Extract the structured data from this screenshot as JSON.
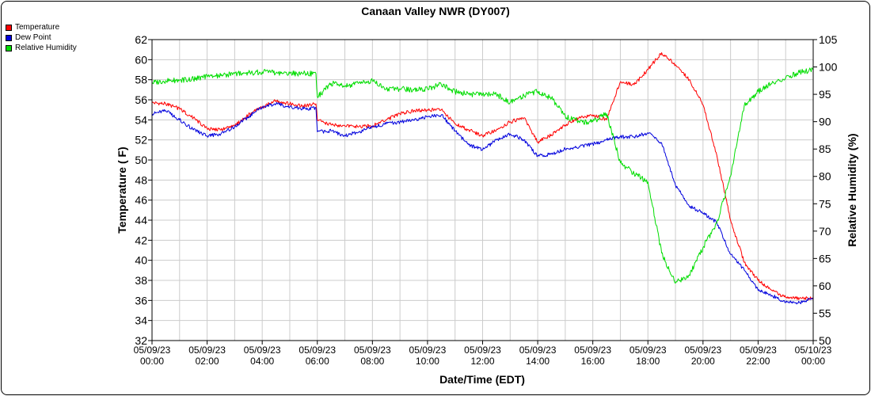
{
  "chart_data": {
    "type": "line",
    "title": "Canaan Valley NWR (DY007)",
    "xlabel": "Date/Time (EDT)",
    "ylabel": "Temperature ( F)",
    "y2label": "Relative Humidity (%)",
    "xlim": [
      0,
      24
    ],
    "ylim": [
      32,
      62
    ],
    "y2lim": [
      50,
      105
    ],
    "x_ticks": [
      0,
      2,
      4,
      6,
      8,
      10,
      12,
      14,
      16,
      18,
      20,
      22,
      24
    ],
    "x_tick_labels": [
      [
        "05/09/23",
        "00:00"
      ],
      [
        "05/09/23",
        "02:00"
      ],
      [
        "05/09/23",
        "04:00"
      ],
      [
        "05/09/23",
        "06:00"
      ],
      [
        "05/09/23",
        "08:00"
      ],
      [
        "05/09/23",
        "10:00"
      ],
      [
        "05/09/23",
        "12:00"
      ],
      [
        "05/09/23",
        "14:00"
      ],
      [
        "05/09/23",
        "16:00"
      ],
      [
        "05/09/23",
        "18:00"
      ],
      [
        "05/09/23",
        "20:00"
      ],
      [
        "05/09/23",
        "22:00"
      ],
      [
        "05/10/23",
        "00:00"
      ]
    ],
    "y_ticks": [
      32,
      34,
      36,
      38,
      40,
      42,
      44,
      46,
      48,
      50,
      52,
      54,
      56,
      58,
      60,
      62
    ],
    "y2_ticks": [
      50,
      55,
      60,
      65,
      70,
      75,
      80,
      85,
      90,
      95,
      100,
      105
    ],
    "grid": true,
    "legend_position": "top-left",
    "series": [
      {
        "name": "Temperature",
        "color": "#ff0000",
        "axis": "left",
        "x": [
          0,
          0.5,
          1,
          1.5,
          2,
          2.5,
          3,
          3.5,
          4,
          4.5,
          5,
          5.5,
          5.95,
          6.0,
          6.5,
          7,
          7.5,
          8,
          8.5,
          9,
          9.5,
          10,
          10.5,
          11,
          11.5,
          12,
          12.5,
          13,
          13.5,
          14,
          14.5,
          15,
          15.5,
          16,
          16.5,
          17,
          17.5,
          18,
          18.5,
          19,
          19.5,
          20,
          20.5,
          21,
          21.5,
          22,
          22.5,
          23,
          23.5,
          24
        ],
        "y": [
          55.7,
          55.6,
          55.1,
          54.2,
          53.1,
          53.0,
          53.4,
          54.5,
          55.3,
          55.9,
          55.6,
          55.4,
          55.6,
          54.0,
          53.5,
          53.4,
          53.3,
          53.4,
          54.0,
          54.6,
          54.9,
          55.0,
          55.0,
          53.6,
          53.0,
          52.4,
          53.0,
          53.8,
          54.2,
          51.8,
          52.5,
          53.5,
          54.2,
          54.5,
          54.0,
          57.8,
          57.5,
          59.0,
          60.7,
          59.5,
          58.0,
          55.5,
          50.5,
          44.0,
          39.8,
          38.0,
          37.0,
          36.3,
          36.2,
          36.2
        ]
      },
      {
        "name": "Dew Point",
        "color": "#0000dd",
        "axis": "left",
        "x": [
          0,
          0.5,
          1,
          1.5,
          2,
          2.5,
          3,
          3.5,
          4,
          4.5,
          5,
          5.5,
          5.95,
          6.0,
          6.5,
          7,
          7.5,
          8,
          8.5,
          9,
          9.5,
          10,
          10.5,
          11,
          11.5,
          12,
          12.5,
          13,
          13.5,
          14,
          14.5,
          15,
          15.5,
          16,
          16.5,
          17,
          17.5,
          18,
          18.5,
          19,
          19.5,
          20,
          20.5,
          21,
          21.5,
          22,
          22.5,
          23,
          23.5,
          24
        ],
        "y": [
          54.6,
          54.9,
          54.0,
          53.0,
          52.4,
          52.6,
          53.3,
          54.3,
          55.3,
          55.6,
          55.3,
          55.1,
          55.2,
          52.8,
          52.9,
          52.4,
          52.8,
          53.3,
          53.6,
          53.8,
          54.0,
          54.3,
          54.5,
          52.9,
          51.5,
          51.0,
          52.0,
          52.6,
          52.0,
          50.4,
          50.6,
          51.1,
          51.3,
          51.6,
          52.0,
          52.3,
          52.3,
          52.7,
          51.7,
          47.5,
          45.4,
          44.7,
          43.8,
          40.6,
          39.0,
          37.0,
          36.5,
          35.8,
          35.8,
          36.2
        ]
      },
      {
        "name": "Relative Humidity",
        "color": "#00dd00",
        "axis": "right",
        "x": [
          0,
          0.5,
          1,
          1.5,
          2,
          2.5,
          3,
          3.5,
          4,
          4.5,
          5,
          5.5,
          5.95,
          6.0,
          6.5,
          7,
          7.5,
          8,
          8.5,
          9,
          9.5,
          10,
          10.5,
          11,
          11.5,
          12,
          12.5,
          13,
          13.5,
          14,
          14.5,
          15,
          15.5,
          16,
          16.5,
          17,
          17.5,
          18,
          18.5,
          19,
          19.5,
          20,
          20.5,
          21,
          21.5,
          22,
          22.5,
          23,
          23.5,
          24
        ],
        "y": [
          97.1,
          97.5,
          97.6,
          97.8,
          98.2,
          98.4,
          98.8,
          98.9,
          99.1,
          98.9,
          98.8,
          98.8,
          98.8,
          94.5,
          97.0,
          96.5,
          97.0,
          97.5,
          96.0,
          96.0,
          95.8,
          96.0,
          96.8,
          95.5,
          95.0,
          95.0,
          95.0,
          93.5,
          94.8,
          95.5,
          94.3,
          91.0,
          90.0,
          90.0,
          91.5,
          82.5,
          80.5,
          79.0,
          66.0,
          60.5,
          62.0,
          67.0,
          71.5,
          80.0,
          93.0,
          95.5,
          97.0,
          98.0,
          99.0,
          99.5
        ]
      }
    ]
  }
}
